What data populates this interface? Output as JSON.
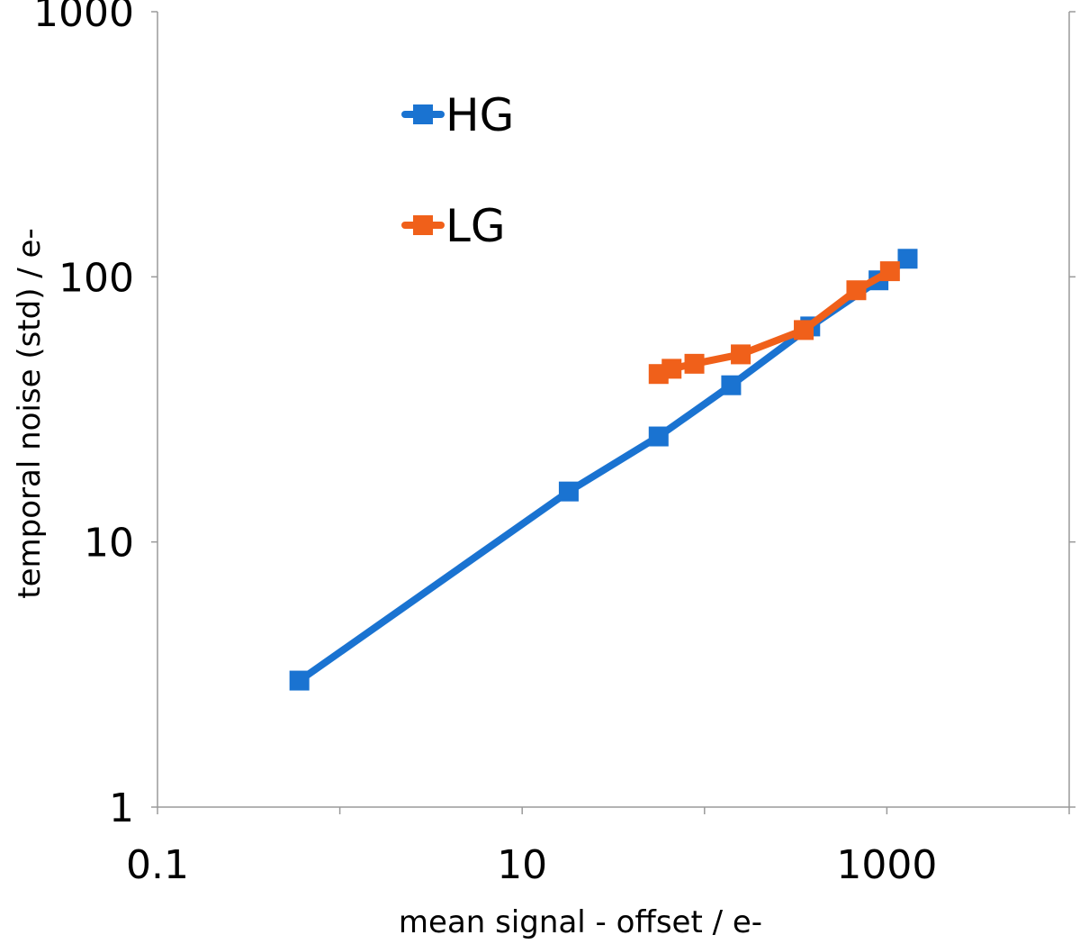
{
  "chart_data": {
    "type": "line",
    "xlabel": "mean signal - offset / e-",
    "ylabel": "temporal noise (std) / e-",
    "x_scale": "log",
    "y_scale": "log",
    "xlim": [
      0.1,
      10000
    ],
    "ylim": [
      1,
      1000
    ],
    "x_tick_values": [
      0.1,
      10,
      1000
    ],
    "x_tick_labels": [
      "0.1",
      "10",
      "1000"
    ],
    "y_tick_values": [
      1,
      10,
      100,
      1000
    ],
    "y_tick_labels": [
      "1",
      "10",
      "100",
      "1000"
    ],
    "grid": false,
    "legend_position": "top-left",
    "series": [
      {
        "name": "HG",
        "color": "#1a73d1",
        "x": [
          0.6,
          18,
          56,
          140,
          380,
          900,
          1300
        ],
        "y": [
          3,
          15.5,
          25,
          39,
          65,
          97,
          117
        ]
      },
      {
        "name": "LG",
        "color": "#f0601a",
        "x": [
          56,
          66,
          88,
          158,
          350,
          680,
          1040
        ],
        "y": [
          43,
          45,
          47,
          51,
          63,
          89,
          105
        ]
      }
    ]
  }
}
